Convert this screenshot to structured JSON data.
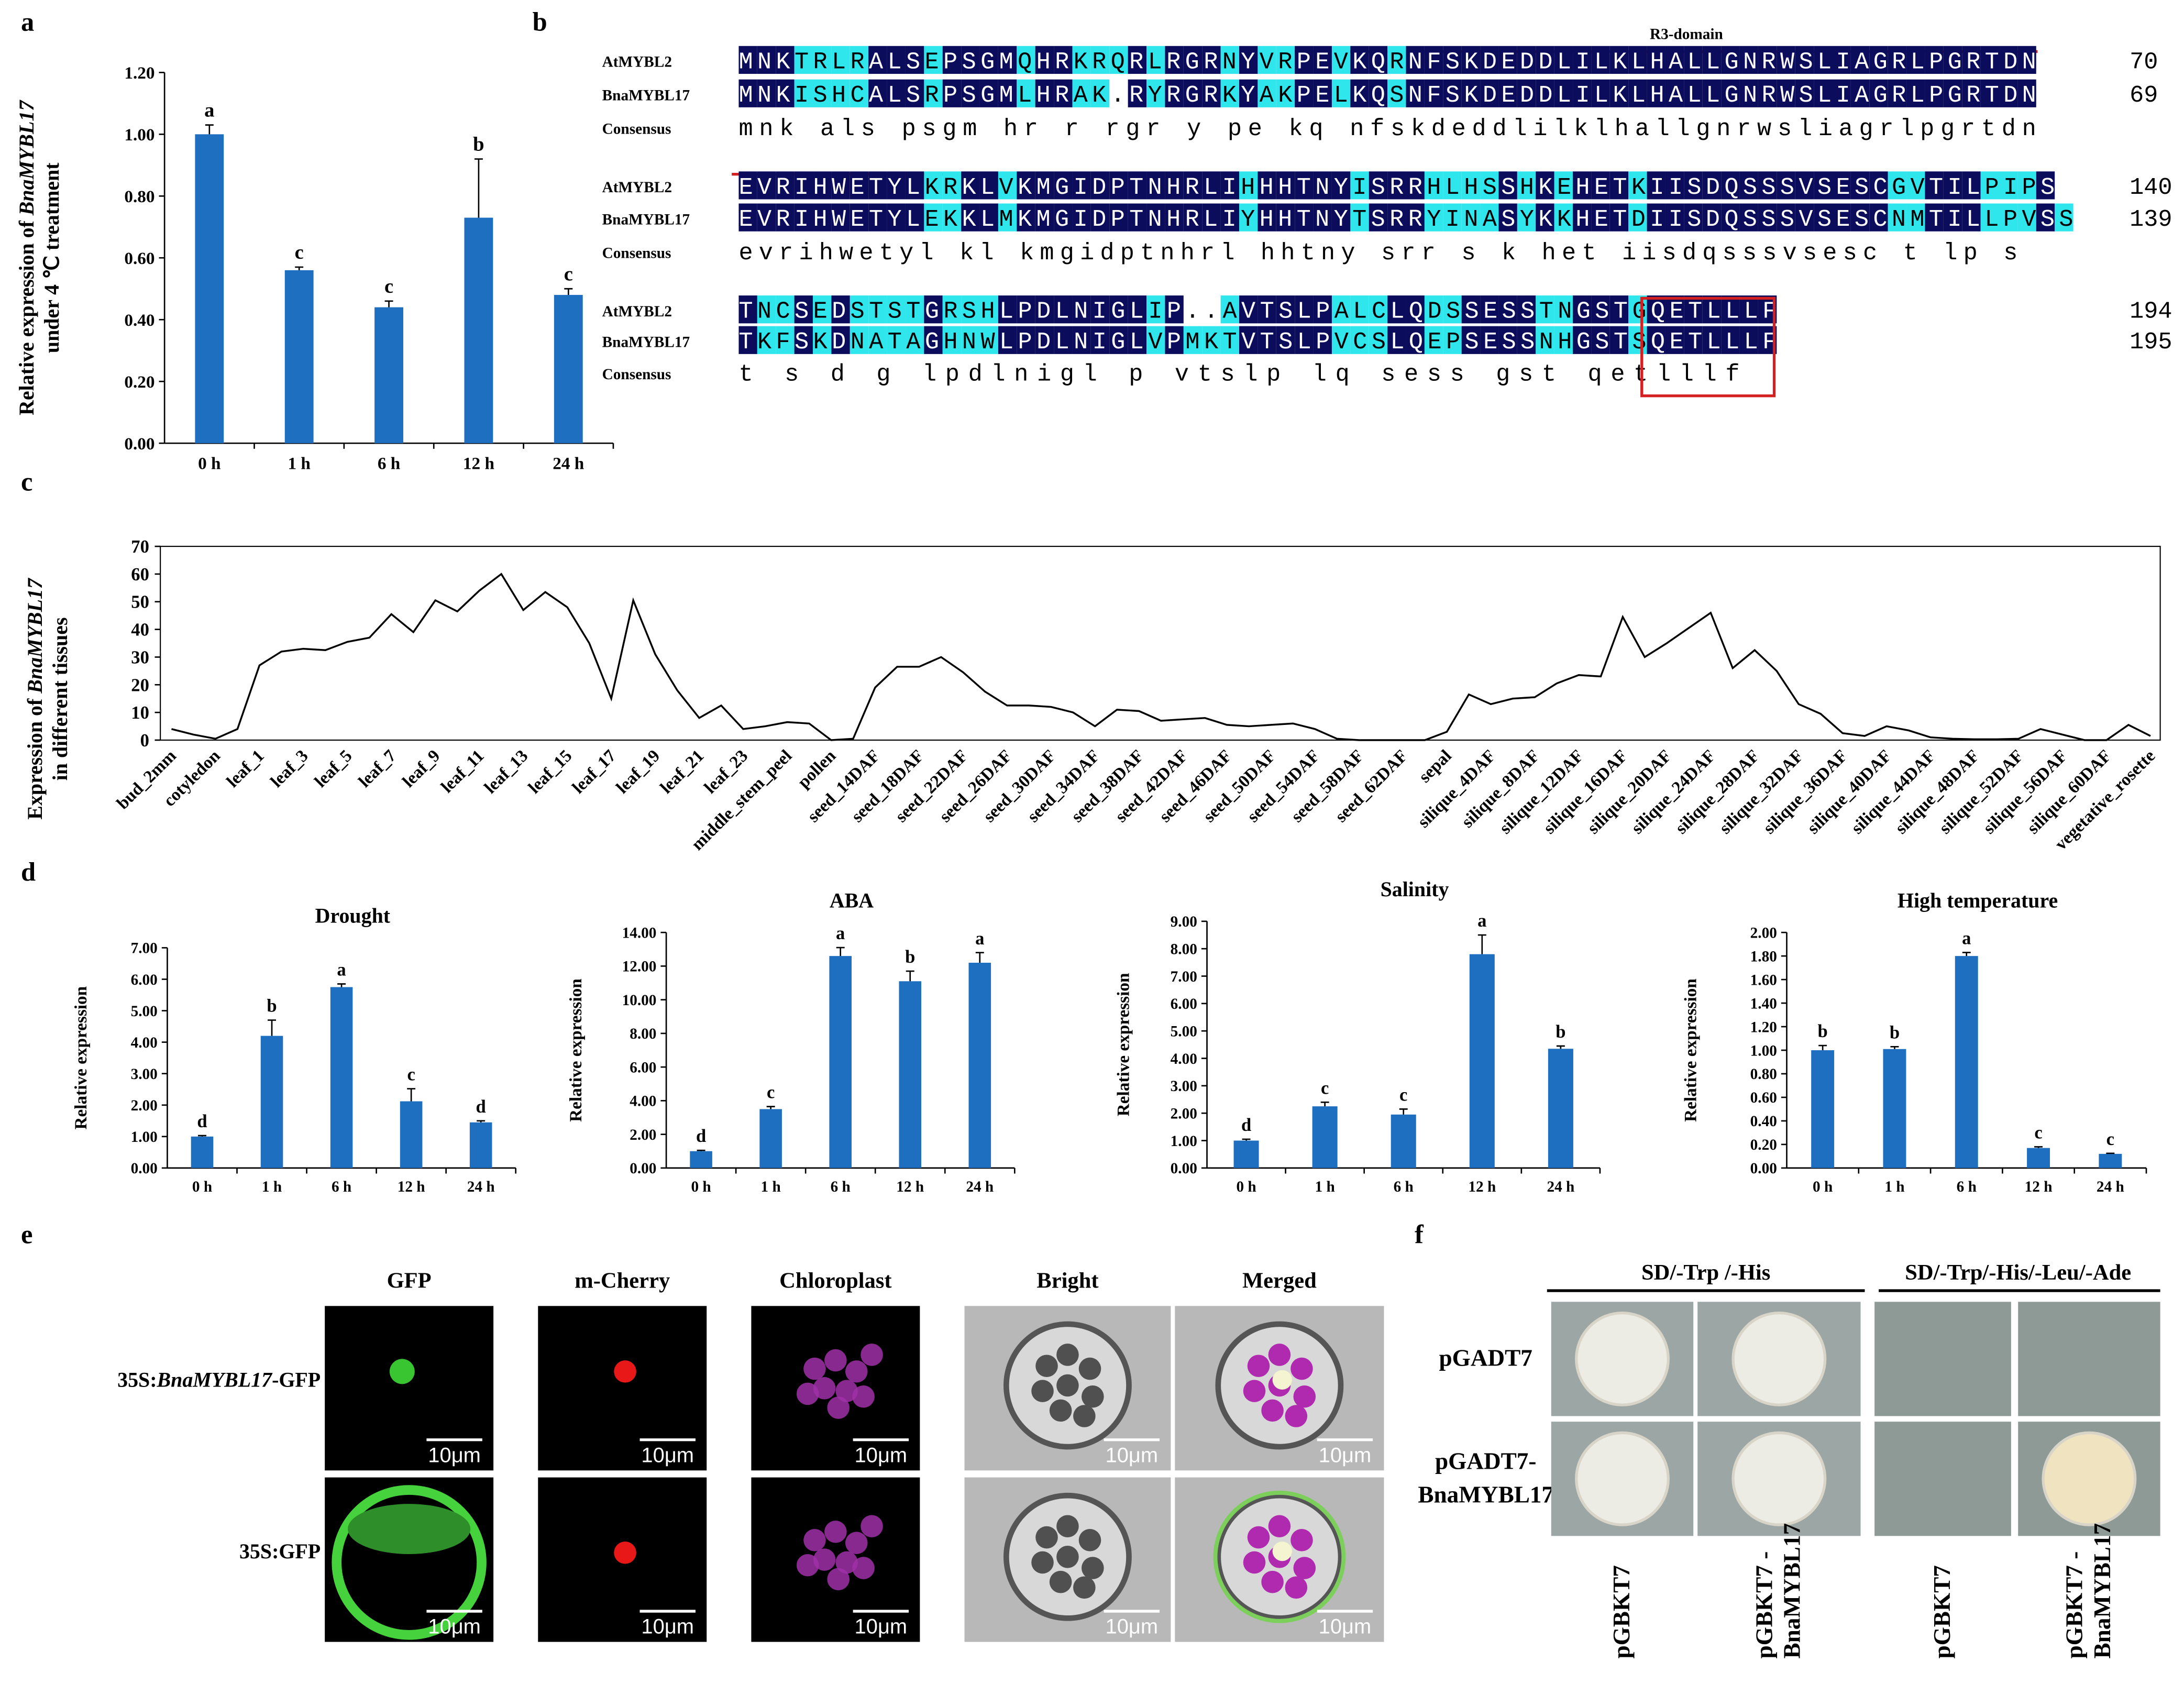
{
  "panel_labels": [
    "a",
    "b",
    "c",
    "d",
    "e",
    "f"
  ],
  "chart_data": [
    {
      "type": "bar",
      "ylabel": [
        [
          "Relative expression of ",
          "BnaMYBL17"
        ],
        [
          "under 4 ℃ treatment"
        ]
      ],
      "categories": [
        "0 h",
        "1 h",
        "6 h",
        "12 h",
        "24 h"
      ],
      "values": [
        1.0,
        0.56,
        0.44,
        0.73,
        0.48
      ],
      "errors": [
        0.03,
        0.01,
        0.02,
        0.19,
        0.02
      ],
      "annotations": [
        "a",
        "c",
        "c",
        "b",
        "c"
      ],
      "color": "#1f6fc0",
      "ylim": [
        0,
        1.2
      ],
      "yticks": [
        {
          "value": 0,
          "label": "0.00"
        },
        {
          "value": 0.2,
          "label": "0.20"
        },
        {
          "value": 0.4,
          "label": "0.40"
        },
        {
          "value": 0.6,
          "label": "0.60"
        },
        {
          "value": 0.8,
          "label": "0.80"
        },
        {
          "value": 1.0,
          "label": "1.00"
        },
        {
          "value": 1.2,
          "label": "1.20"
        }
      ]
    },
    {
      "type": "line",
      "ylabel": [
        [
          "Expression of ",
          "BnaMYBL17"
        ],
        [
          "in different tissues"
        ]
      ],
      "color": "#000000",
      "ylim": [
        0,
        70
      ],
      "yticks": [
        0,
        10,
        20,
        30,
        40,
        50,
        60,
        70
      ],
      "categories": [
        "bud_2mm",
        null,
        "cotyledon",
        null,
        "leaf_1",
        null,
        "leaf_3",
        null,
        "leaf_5",
        null,
        "leaf_7",
        null,
        "leaf_9",
        null,
        "leaf_11",
        null,
        "leaf_13",
        null,
        "leaf_15",
        null,
        "leaf_17",
        null,
        "leaf_19",
        null,
        "leaf_21",
        null,
        "leaf_23",
        null,
        "middle_stem_peel",
        null,
        "pollen",
        null,
        "seed_14DAF",
        null,
        "seed_18DAF",
        null,
        "seed_22DAF",
        null,
        "seed_26DAF",
        null,
        "seed_30DAF",
        null,
        "seed_34DAF",
        null,
        "seed_38DAF",
        null,
        "seed_42DAF",
        null,
        "seed_46DAF",
        null,
        "seed_50DAF",
        null,
        "seed_54DAF",
        null,
        "seed_58DAF",
        null,
        "seed_62DAF",
        null,
        "sepal",
        null,
        "silique_4DAF",
        null,
        "silique_8DAF",
        null,
        "silique_12DAF",
        null,
        "silique_16DAF",
        null,
        "silique_20DAF",
        null,
        "silique_24DAF",
        null,
        "silique_28DAF",
        null,
        "silique_32DAF",
        null,
        "silique_36DAF",
        null,
        "silique_40DAF",
        null,
        "silique_44DAF",
        null,
        "silique_48DAF",
        null,
        "silique_52DAF",
        null,
        "silique_56DAF",
        null,
        "silique_60DAF",
        null,
        "vegetative_rosette"
      ],
      "values": [
        4,
        2,
        0.5,
        4,
        27,
        32,
        33,
        32.5,
        35.5,
        37,
        45.5,
        39,
        50.5,
        46.5,
        54,
        60,
        47,
        53.5,
        48,
        35,
        15,
        50.5,
        31,
        18,
        8,
        12.5,
        4,
        5,
        6.5,
        6,
        0,
        0.5,
        19,
        26.5,
        26.5,
        30,
        24.5,
        17.5,
        12.5,
        12.5,
        12,
        10,
        5,
        11,
        10.5,
        7,
        7.5,
        8,
        5.5,
        5,
        5.5,
        6,
        4,
        0.5,
        0,
        0,
        0,
        0,
        3,
        16.5,
        13,
        15,
        15.5,
        20.5,
        23.5,
        23,
        44.5,
        30,
        35,
        40.5,
        46,
        26,
        32.5,
        25,
        13,
        9.5,
        2.5,
        1.5,
        5,
        3.5,
        1,
        0.5,
        0.3,
        0.3,
        0.5,
        4,
        2,
        0,
        0,
        5.5,
        1.5
      ]
    },
    {
      "type": "bar",
      "title": "Drought",
      "ylabel": [
        [
          "Relative expression"
        ]
      ],
      "categories": [
        "0 h",
        "1 h",
        "6 h",
        "12 h",
        "24 h"
      ],
      "values": [
        1.0,
        4.2,
        5.75,
        2.12,
        1.45
      ],
      "errors": [
        0.03,
        0.5,
        0.1,
        0.4,
        0.05
      ],
      "annotations": [
        "d",
        "b",
        "a",
        "c",
        "d"
      ],
      "color": "#1f6fc0",
      "ylim": [
        0,
        7
      ],
      "yticks": [
        {
          "value": 0,
          "label": "0.00"
        },
        {
          "value": 1,
          "label": "1.00"
        },
        {
          "value": 2,
          "label": "2.00"
        },
        {
          "value": 3,
          "label": "3.00"
        },
        {
          "value": 4,
          "label": "4.00"
        },
        {
          "value": 5,
          "label": "5.00"
        },
        {
          "value": 6,
          "label": "6.00"
        },
        {
          "value": 7,
          "label": "7.00"
        }
      ]
    },
    {
      "type": "bar",
      "title": "ABA",
      "ylabel": [
        [
          "Relative expression"
        ]
      ],
      "categories": [
        "0 h",
        "1 h",
        "6 h",
        "12 h",
        "24 h"
      ],
      "values": [
        1.0,
        3.5,
        12.6,
        11.1,
        12.2
      ],
      "errors": [
        0.05,
        0.15,
        0.5,
        0.6,
        0.6
      ],
      "annotations": [
        "d",
        "c",
        "a",
        "b",
        "a"
      ],
      "color": "#1f6fc0",
      "ylim": [
        0,
        14
      ],
      "yticks": [
        {
          "value": 0,
          "label": "0.00"
        },
        {
          "value": 2,
          "label": "2.00"
        },
        {
          "value": 4,
          "label": "4.00"
        },
        {
          "value": 6,
          "label": "6.00"
        },
        {
          "value": 8,
          "label": "8.00"
        },
        {
          "value": 10,
          "label": "10.00"
        },
        {
          "value": 12,
          "label": "12.00"
        },
        {
          "value": 14,
          "label": "14.00"
        }
      ]
    },
    {
      "type": "bar",
      "title": "Salinity",
      "ylabel": [
        [
          "Relative expression"
        ]
      ],
      "categories": [
        "0 h",
        "1 h",
        "6 h",
        "12 h",
        "24 h"
      ],
      "values": [
        1.0,
        2.25,
        1.95,
        7.8,
        4.35
      ],
      "errors": [
        0.05,
        0.15,
        0.2,
        0.7,
        0.1
      ],
      "annotations": [
        "d",
        "c",
        "c",
        "a",
        "b"
      ],
      "color": "#1f6fc0",
      "ylim": [
        0,
        9
      ],
      "yticks": [
        {
          "value": 0,
          "label": "0.00"
        },
        {
          "value": 1,
          "label": "1.00"
        },
        {
          "value": 2,
          "label": "2.00"
        },
        {
          "value": 3,
          "label": "3.00"
        },
        {
          "value": 4,
          "label": "4.00"
        },
        {
          "value": 5,
          "label": "5.00"
        },
        {
          "value": 6,
          "label": "6.00"
        },
        {
          "value": 7,
          "label": "7.00"
        },
        {
          "value": 8,
          "label": "8.00"
        },
        {
          "value": 9,
          "label": "9.00"
        }
      ]
    },
    {
      "type": "bar",
      "title": "High temperature",
      "ylabel": [
        [
          "Relative expression"
        ]
      ],
      "categories": [
        "0 h",
        "1 h",
        "6 h",
        "12 h",
        "24 h"
      ],
      "values": [
        1.0,
        1.01,
        1.8,
        0.17,
        0.12
      ],
      "errors": [
        0.04,
        0.02,
        0.03,
        0.01,
        0.005
      ],
      "annotations": [
        "b",
        "b",
        "a",
        "c",
        "c"
      ],
      "color": "#1f6fc0",
      "ylim": [
        0,
        2
      ],
      "yticks": [
        {
          "value": 0,
          "label": "0.00"
        },
        {
          "value": 0.2,
          "label": "0.20"
        },
        {
          "value": 0.4,
          "label": "0.40"
        },
        {
          "value": 0.6,
          "label": "0.60"
        },
        {
          "value": 0.8,
          "label": "0.80"
        },
        {
          "value": 1.0,
          "label": "1.00"
        },
        {
          "value": 1.2,
          "label": "1.20"
        },
        {
          "value": 1.4,
          "label": "1.40"
        },
        {
          "value": 1.6,
          "label": "1.60"
        },
        {
          "value": 1.8,
          "label": "1.80"
        },
        {
          "value": 2.0,
          "label": "2.00"
        }
      ]
    }
  ],
  "alignment": {
    "domain_label": "R3-domain",
    "blocks": [
      {
        "rows": [
          {
            "name": "AtMYBL2",
            "seq": "MNKTRLRALSEPSGMQHRKRQRLRGRNYVRPEVKQRNFSKDEDDLILKLHALLGNRWSLIAGRLPGRTDN",
            "end": "70"
          },
          {
            "name": "BnaMYBL17",
            "seq": "MNKISHCALSRPSGMLHRAK.RYRGRKYAKPELKQSNFSKDEDDLILKLHALLGNRWSLIAGRLPGRTDN",
            "end": "69"
          },
          {
            "name": "Consensus",
            "seq": "mnk    als psgm hr   r rgr y  pe kq nfskdeddlilklhallgnrwsliagrlpgrtdn"
          }
        ]
      },
      {
        "rows": [
          {
            "name": "AtMYBL2",
            "seq": "EVRIHWETYLKRKLVKMGIDPTNHRLIHHHTNYISRRHLHSSHKEHETKIISDQSSSVSESCGVTILPIPS",
            "end": "140"
          },
          {
            "name": "BnaMYBL17",
            "seq": "EVRIHWETYLEKKLMKMGIDPTNHRLIYHHTNYTSRRYINASYKKHETDIISDQSSSVSESCNMTILLPVSS",
            "end": "139"
          },
          {
            "name": "Consensus",
            "seq": "evrihwetyl  kl kmgidptnhrl hhtny srr    s k het iisdqsssvsesc  t lp s"
          }
        ]
      },
      {
        "rows": [
          {
            "name": "AtMYBL2",
            "seq": "TNCSEDSTSTGRSHLPDLNIGLIP..AVTSLPALCLQDSSESSTNGSTGQETLLLF",
            "end": "194"
          },
          {
            "name": "BnaMYBL17",
            "seq": "TKFSKDNATAGHNWLPDLNIGLVPMKTVTSLPVCSLQEPSESSNHGSTSQETLLLF",
            "end": "195"
          },
          {
            "name": "Consensus",
            "seq": "t  s d   g   lpdlnigl p  vtslp   lq  sess  gst qetlllf"
          }
        ]
      }
    ]
  },
  "localization": {
    "columns": [
      "GFP",
      "m-Cherry",
      "Chloroplast",
      "Bright",
      "Merged"
    ],
    "rows": [
      [
        "35S:",
        "BnaMYBL17",
        "-GFP"
      ],
      [
        "35S:GFP"
      ]
    ],
    "scale_bar": "10μm"
  },
  "yeast": {
    "media": [
      "SD/-Trp /-His",
      "SD/-Trp/-His/-Leu/-Ade"
    ],
    "rows": [
      [
        "pGADT7"
      ],
      [
        "pGADT7-",
        "BnaMYBL17"
      ]
    ],
    "columns": [
      [
        "pGBKT7"
      ],
      [
        "pGBKT7 -",
        "BnaMYBL17"
      ],
      [
        "pGBKT7"
      ],
      [
        "pGBKT7 -",
        "BnaMYBL17"
      ]
    ]
  }
}
